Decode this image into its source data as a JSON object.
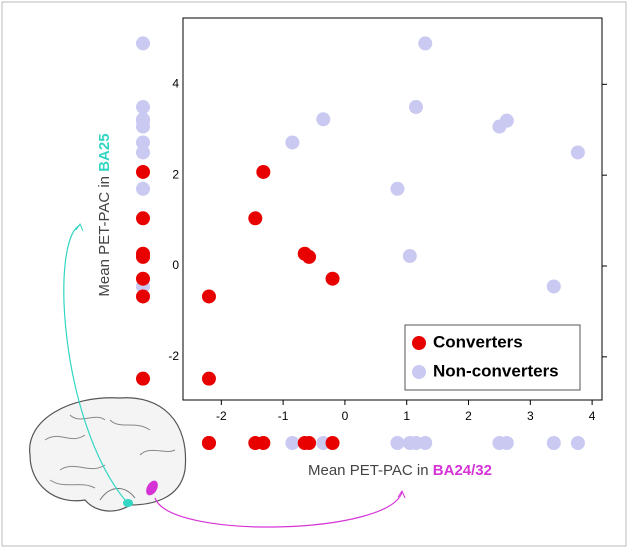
{
  "chart_data": {
    "type": "scatter",
    "x_label": "Mean PET-PAC in",
    "x_label_region": "BA24/32",
    "y_label": "Mean PET-PAC in",
    "y_label_region": "BA25",
    "xlim": [
      -2.62,
      4.16
    ],
    "xticks": [
      -2,
      -1,
      0,
      1,
      2,
      3,
      4
    ],
    "ylim": [
      -2.95,
      5.46
    ],
    "yticks": [
      -2,
      0,
      2,
      4
    ],
    "legend": "lower right",
    "marginal_rugs": true,
    "series": [
      {
        "name": "Non-converters",
        "color": "#c9c9f2",
        "x": [
          -0.85,
          -0.35,
          1.3,
          1.15,
          0.85,
          1.05,
          2.5,
          2.62,
          3.77,
          3.38
        ],
        "y": [
          2.72,
          3.23,
          4.9,
          3.5,
          1.7,
          0.22,
          3.07,
          3.2,
          2.5,
          -0.45
        ]
      },
      {
        "name": "Converters",
        "color": "#e80000",
        "x": [
          -2.2,
          -2.2,
          -1.45,
          -1.32,
          -0.65,
          -0.58,
          -0.2
        ],
        "y": [
          -0.67,
          -2.48,
          1.05,
          2.07,
          0.27,
          0.2,
          -0.28
        ]
      }
    ]
  }
}
